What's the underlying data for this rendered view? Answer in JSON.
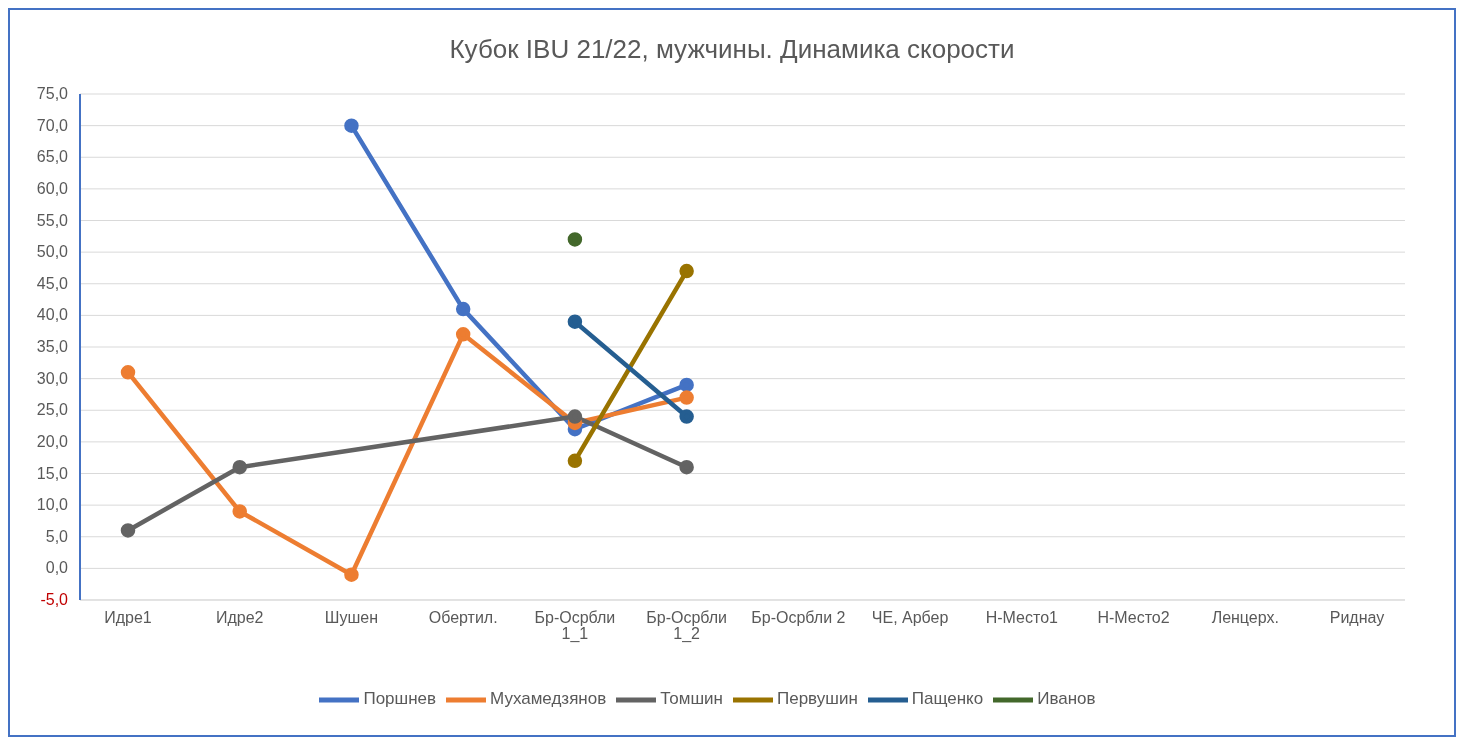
{
  "chart_data": {
    "type": "line",
    "title": "Кубок IBU 21/22, мужчины. Динамика скорости",
    "categories": [
      "Идре1",
      "Идре2",
      "Шушен",
      "Обертил.",
      "Бр-Осрбли 1_1",
      "Бр-Осрбли 1_2",
      "Бр-Осрбли 2",
      "ЧЕ, Арбер",
      "Н-Место1",
      "Н-Место2",
      "Ленцерх.",
      "Риднау"
    ],
    "series": [
      {
        "name": "Поршнев",
        "color": "#4472c4",
        "values": [
          null,
          null,
          70,
          41,
          22,
          29,
          null,
          null,
          null,
          null,
          null,
          null
        ]
      },
      {
        "name": "Мухамедзянов",
        "color": "#ed7d31",
        "values": [
          31,
          9,
          -1,
          37,
          23,
          27,
          null,
          null,
          null,
          null,
          null,
          null
        ]
      },
      {
        "name": "Томшин",
        "color": "#636363",
        "values": [
          6,
          16,
          null,
          null,
          24,
          16,
          null,
          null,
          null,
          null,
          null,
          null
        ]
      },
      {
        "name": "Первушин",
        "color": "#997300",
        "values": [
          null,
          null,
          null,
          null,
          17,
          47,
          null,
          null,
          null,
          null,
          null,
          null
        ]
      },
      {
        "name": "Пащенко",
        "color": "#255e91",
        "values": [
          null,
          null,
          null,
          null,
          39,
          24,
          null,
          null,
          null,
          null,
          null,
          null
        ]
      },
      {
        "name": "Иванов",
        "color": "#43682b",
        "values": [
          null,
          null,
          null,
          null,
          52,
          null,
          null,
          null,
          null,
          null,
          null,
          null
        ]
      }
    ],
    "ylim": [
      -5,
      75
    ],
    "yticks": [
      {
        "value": -5,
        "label": "-5,0"
      },
      {
        "value": 0,
        "label": "0,0"
      },
      {
        "value": 5,
        "label": "5,0"
      },
      {
        "value": 10,
        "label": "10,0"
      },
      {
        "value": 15,
        "label": "15,0"
      },
      {
        "value": 20,
        "label": "20,0"
      },
      {
        "value": 25,
        "label": "25,0"
      },
      {
        "value": 30,
        "label": "30,0"
      },
      {
        "value": 35,
        "label": "35,0"
      },
      {
        "value": 40,
        "label": "40,0"
      },
      {
        "value": 45,
        "label": "45,0"
      },
      {
        "value": 50,
        "label": "50,0"
      },
      {
        "value": 55,
        "label": "55,0"
      },
      {
        "value": 60,
        "label": "60,0"
      },
      {
        "value": 65,
        "label": "65,0"
      },
      {
        "value": 70,
        "label": "70,0"
      },
      {
        "value": 75,
        "label": "75,0"
      }
    ],
    "grid": "y",
    "legend": "bottom",
    "marker": "circle",
    "line_style": "solid"
  }
}
